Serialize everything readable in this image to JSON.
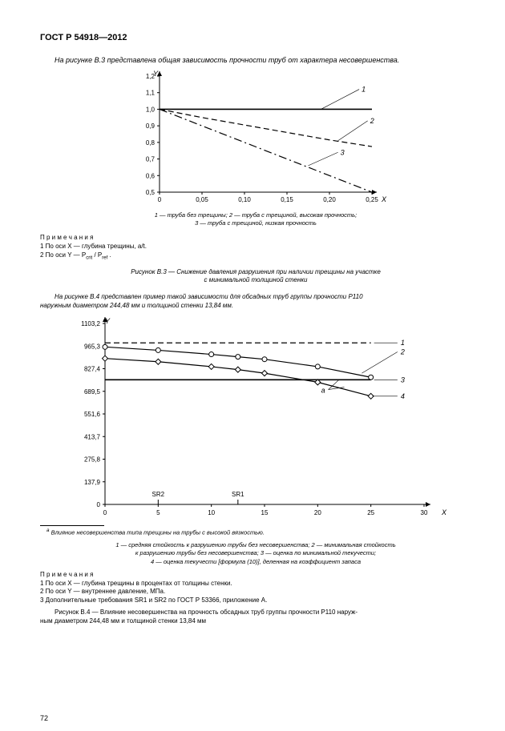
{
  "doc_title": "ГОСТ Р 54918—2012",
  "intro_b3": "На рисунке В.3 представлена общая зависимость прочности труб от характера несовершенства.",
  "chart_b3": {
    "type": "line",
    "axis_x_label": "X",
    "axis_y_label": "Y",
    "xlim": [
      0,
      0.25
    ],
    "ylim": [
      0.5,
      1.2
    ],
    "xticks": [
      "0",
      "0,05",
      "0,10",
      "0,15",
      "0,20",
      "0,25"
    ],
    "yticks": [
      "0,5",
      "0,6",
      "0,7",
      "0,8",
      "0,9",
      "1,0",
      "1,1",
      "1,2"
    ],
    "bg": "#ffffff",
    "axis_color": "#000000",
    "tick_font_size": 8,
    "leader_label_1": "1",
    "leader_label_2": "2",
    "leader_label_3": "3",
    "series": {
      "s1": {
        "label": "1",
        "style": "solid",
        "color": "#000000",
        "width": 1.6,
        "pts": [
          [
            0,
            1.0
          ],
          [
            0.25,
            1.0
          ]
        ]
      },
      "s2": {
        "label": "2",
        "style": "dashed",
        "color": "#000000",
        "width": 1.2,
        "pts": [
          [
            0,
            1.0
          ],
          [
            0.05,
            0.95
          ],
          [
            0.1,
            0.905
          ],
          [
            0.15,
            0.86
          ],
          [
            0.2,
            0.815
          ],
          [
            0.25,
            0.775
          ]
        ]
      },
      "s3": {
        "label": "3",
        "style": "dashdot",
        "color": "#000000",
        "width": 1.2,
        "pts": [
          [
            0,
            1.0
          ],
          [
            0.05,
            0.9
          ],
          [
            0.1,
            0.8
          ],
          [
            0.15,
            0.7
          ],
          [
            0.2,
            0.6
          ],
          [
            0.25,
            0.5
          ]
        ]
      }
    }
  },
  "legend_b3_a": "1 — труба без трещины; 2 — труба с трещиной, высокая прочность;",
  "legend_b3_b": "3 — труба с трещиной, низкая прочность",
  "notes_b3_hdr": "П р и м е ч а н и я",
  "notes_b3_1": "1 По оси X — глубина трещины, a/t.",
  "notes_b3_2_pre": "2 По оси Y — P",
  "notes_b3_2_sub1": "crit",
  "notes_b3_2_mid": " / P",
  "notes_b3_2_sub2": "ref",
  "notes_b3_2_post": " .",
  "fig_b3_cap_a": "Рисунок В.3 — Снижение давления разрушения при наличии трещины на участке",
  "fig_b3_cap_b": "с минимальной толщиной стенки",
  "intro_b4_a": "На рисунке В.4 представлен пример такой зависимости для обсадных труб группы прочности P110",
  "intro_b4_b": "наружным диаметром 244,48 мм и толщиной стенки 13,84 мм.",
  "chart_b4": {
    "type": "line",
    "axis_x_label": "X",
    "axis_y_label": "Y",
    "xlim": [
      0,
      30
    ],
    "ylim": [
      0,
      1103.2
    ],
    "xticks": [
      "0",
      "5",
      "10",
      "15",
      "20",
      "25",
      "30"
    ],
    "yticks": [
      "0",
      "137,9",
      "275,8",
      "413,7",
      "551,6",
      "689,5",
      "827,4",
      "965,3",
      "1103,2"
    ],
    "bg": "#ffffff",
    "axis_color": "#000000",
    "tick_font_size": 8,
    "sr1_label": "SR1",
    "sr2_label": "SR2",
    "a_label": "а",
    "leader_label_1": "1",
    "leader_label_2": "2",
    "leader_label_3": "3",
    "leader_label_4": "4",
    "series": {
      "s1": {
        "label": "1",
        "style": "dashed",
        "color": "#000000",
        "width": 1.2,
        "marker": "none",
        "pts": [
          [
            0,
            985
          ],
          [
            25,
            985
          ]
        ]
      },
      "s2": {
        "label": "2",
        "style": "solid",
        "color": "#000000",
        "width": 1.2,
        "marker": "circle",
        "pts": [
          [
            0,
            960
          ],
          [
            5,
            940
          ],
          [
            10,
            915
          ],
          [
            12.5,
            900
          ],
          [
            15,
            885
          ],
          [
            20,
            840
          ],
          [
            25,
            775
          ]
        ]
      },
      "s3": {
        "label": "3",
        "style": "solid",
        "color": "#000000",
        "width": 1.6,
        "marker": "none",
        "pts": [
          [
            0,
            760
          ],
          [
            25,
            760
          ]
        ]
      },
      "s4": {
        "label": "4",
        "style": "solid",
        "color": "#000000",
        "width": 1.2,
        "marker": "diamond",
        "pts": [
          [
            0,
            890
          ],
          [
            5,
            870
          ],
          [
            10,
            840
          ],
          [
            12.5,
            822
          ],
          [
            15,
            800
          ],
          [
            20,
            745
          ],
          [
            25,
            660
          ]
        ]
      }
    },
    "sr1_x": 12.5,
    "sr2_x": 5
  },
  "footnote_marker": "а",
  "footnote_b4": " Влияние несовершенства типа трещины на трубы с высокой вязкостью.",
  "legend_b4_a": "1 — средняя стойкость к разрушению трубы без несовершенства; 2 — минимальная стойкость",
  "legend_b4_b": "к разрушению трубы без несовершенства; 3 — оценка по минимальной текучести;",
  "legend_b4_c": "4 — оценка текучести [формула (10)], деленная на коэффициент запаса",
  "notes_b4_hdr": "П р и м е ч а н и я",
  "notes_b4_1": "1 По оси X — глубина трещины в процентах от толщины стенки.",
  "notes_b4_2": "2 По оси Y — внутреннее давление, МПа.",
  "notes_b4_3": "3 Дополнительные требования SR1 и SR2 по ГОСТ Р 53366, приложение А.",
  "fig_b4_cap_a": "Рисунок В.4 — Влияние несовершенства на прочность обсадных труб группы прочности P110  наруж-",
  "fig_b4_cap_b": "ным диаметром 244,48 мм и толщиной стенки 13,84 мм",
  "page_num": "72"
}
